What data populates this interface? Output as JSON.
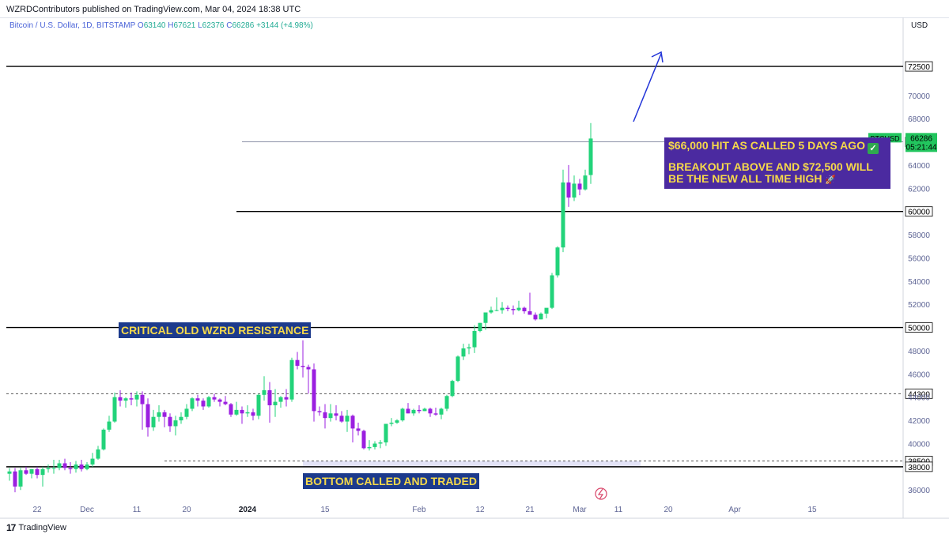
{
  "header": {
    "publish_line": "WZRDContributors published on TradingView.com, Mar 04, 2024 18:38 UTC"
  },
  "legend": {
    "symbol": "Bitcoin / U.S. Dollar, 1D, BITSTAMP",
    "open_label": "O",
    "open": "63140",
    "high_label": "H",
    "high": "67621",
    "low_label": "L",
    "low": "62376",
    "close_label": "C",
    "close": "66286",
    "change": "+3144 (+4.98%)"
  },
  "currency": "USD",
  "footer": {
    "brand": "TradingView",
    "brand_mark": "17"
  },
  "annotations": {
    "resistance": "CRITICAL OLD WZRD RESISTANCE",
    "bottom": "BOTTOM CALLED AND TRADED",
    "box_line1": "$66,000 HIT AS CALLED 5 DAYS AGO",
    "box_line2": "BREAKOUT ABOVE AND $72,500 WILL",
    "box_line3": "BE THE NEW ALL TIME HIGH"
  },
  "colors": {
    "up": "#22d37a",
    "down": "#9b1fe0",
    "price_tag": "#22c55e",
    "arrow": "#2234d8",
    "text_axis": "#5d6494"
  },
  "chart_data": {
    "type": "candlestick",
    "title": "Bitcoin / U.S. Dollar, 1D, BITSTAMP",
    "ylim": [
      35200,
      75500
    ],
    "y_ticks": [
      36000,
      40000,
      42000,
      44000,
      46000,
      48000,
      52000,
      54000,
      56000,
      58000,
      62000,
      64000,
      68000,
      70000
    ],
    "x_tick_labels": [
      {
        "label": "22",
        "i": 5
      },
      {
        "label": "Dec",
        "i": 14
      },
      {
        "label": "11",
        "i": 23
      },
      {
        "label": "20",
        "i": 32
      },
      {
        "label": "2024",
        "i": 43
      },
      {
        "label": "15",
        "i": 57
      },
      {
        "label": "Feb",
        "i": 74
      },
      {
        "label": "12",
        "i": 85
      },
      {
        "label": "21",
        "i": 94
      },
      {
        "label": "Mar",
        "i": 103
      },
      {
        "label": "11",
        "i": 110
      },
      {
        "label": "20",
        "i": 119
      },
      {
        "label": "Apr",
        "i": 131
      },
      {
        "label": "15",
        "i": 145
      }
    ],
    "horizontal_levels": [
      {
        "value": 72500,
        "label": "72500",
        "from_i": -2
      },
      {
        "value": 66000,
        "label": "66000",
        "from_i": 42
      },
      {
        "value": 60000,
        "label": "60000",
        "from_i": 41
      },
      {
        "value": 50000,
        "label": "50000",
        "from_i": -2
      },
      {
        "value": 44300,
        "label": "44300",
        "from_i": -2,
        "dashed": true
      },
      {
        "value": 38500,
        "label": "38500",
        "from_i": 28,
        "dashed": true
      },
      {
        "value": 38000,
        "label": "38000",
        "from_i": -2
      }
    ],
    "current_price": {
      "symbol": "BTCUSD",
      "value": "66286",
      "countdown": "05:21:44"
    },
    "candles": [
      [
        37400,
        37900,
        36800,
        37600
      ],
      [
        37600,
        37900,
        35800,
        36300
      ],
      [
        36300,
        37900,
        36000,
        37700
      ],
      [
        37700,
        38000,
        37300,
        37400
      ],
      [
        37400,
        37800,
        37000,
        37800
      ],
      [
        37800,
        38000,
        37000,
        37300
      ],
      [
        37300,
        38000,
        36300,
        37800
      ],
      [
        37800,
        38200,
        37500,
        37900
      ],
      [
        37900,
        38600,
        37400,
        37900
      ],
      [
        37900,
        38600,
        37700,
        38300
      ],
      [
        38300,
        38700,
        37700,
        37900
      ],
      [
        37900,
        38400,
        37400,
        37800
      ],
      [
        37800,
        38500,
        37500,
        38200
      ],
      [
        38200,
        38600,
        37600,
        37800
      ],
      [
        37800,
        38400,
        37700,
        38200
      ],
      [
        38200,
        39200,
        38000,
        38700
      ],
      [
        38700,
        39800,
        38600,
        39500
      ],
      [
        39500,
        41300,
        39400,
        41200
      ],
      [
        41200,
        42400,
        41000,
        41900
      ],
      [
        41900,
        44400,
        41800,
        44000
      ],
      [
        44000,
        44600,
        43200,
        43700
      ],
      [
        43700,
        44000,
        43100,
        43900
      ],
      [
        43900,
        44400,
        43300,
        43800
      ],
      [
        43800,
        44500,
        43200,
        44200
      ],
      [
        44200,
        44500,
        41200,
        43400
      ],
      [
        43400,
        43900,
        40600,
        41400
      ],
      [
        41400,
        42900,
        41100,
        42300
      ],
      [
        42300,
        43300,
        41900,
        42700
      ],
      [
        42700,
        42900,
        41400,
        42300
      ],
      [
        42300,
        42600,
        41000,
        41500
      ],
      [
        41500,
        42400,
        40700,
        42000
      ],
      [
        42000,
        42700,
        41700,
        42300
      ],
      [
        42300,
        43400,
        42100,
        43000
      ],
      [
        43000,
        44000,
        42800,
        43900
      ],
      [
        43900,
        44200,
        43200,
        43700
      ],
      [
        43700,
        43900,
        42900,
        43200
      ],
      [
        43200,
        44100,
        43100,
        44000
      ],
      [
        44000,
        44300,
        43600,
        43800
      ],
      [
        43800,
        43900,
        43200,
        43600
      ],
      [
        43600,
        44100,
        43300,
        43400
      ],
      [
        43400,
        43500,
        42300,
        42500
      ],
      [
        42500,
        43600,
        42400,
        42900
      ],
      [
        42900,
        43200,
        41700,
        42600
      ],
      [
        42600,
        43300,
        42300,
        42700
      ],
      [
        42700,
        43000,
        42000,
        42400
      ],
      [
        42400,
        44300,
        42100,
        44200
      ],
      [
        44200,
        45800,
        43700,
        44600
      ],
      [
        44600,
        45300,
        41800,
        43300
      ],
      [
        43300,
        44700,
        42300,
        43600
      ],
      [
        43600,
        44100,
        43100,
        44000
      ],
      [
        44000,
        44700,
        43200,
        43800
      ],
      [
        43800,
        47400,
        43600,
        47200
      ],
      [
        47200,
        47900,
        46400,
        46700
      ],
      [
        46700,
        48900,
        45700,
        46600
      ],
      [
        46600,
        46800,
        44300,
        46400
      ],
      [
        46400,
        46900,
        41900,
        42800
      ],
      [
        42800,
        43200,
        42400,
        42700
      ],
      [
        42700,
        43400,
        41300,
        42200
      ],
      [
        42200,
        43400,
        41900,
        42600
      ],
      [
        42600,
        43300,
        42000,
        42400
      ],
      [
        42400,
        42800,
        41800,
        41900
      ],
      [
        41900,
        42900,
        41000,
        42400
      ],
      [
        42400,
        42500,
        40100,
        41300
      ],
      [
        41300,
        41800,
        40700,
        41100
      ],
      [
        41100,
        41200,
        39500,
        39600
      ],
      [
        39600,
        40300,
        39400,
        39700
      ],
      [
        39700,
        40200,
        39500,
        40000
      ],
      [
        40000,
        40300,
        39600,
        40100
      ],
      [
        40100,
        41700,
        39800,
        41700
      ],
      [
        41700,
        42200,
        41500,
        41800
      ],
      [
        41800,
        42100,
        41700,
        42000
      ],
      [
        42000,
        43100,
        41900,
        43000
      ],
      [
        43000,
        43500,
        42600,
        42600
      ],
      [
        42600,
        43000,
        42400,
        42900
      ],
      [
        42900,
        43300,
        42600,
        42800
      ],
      [
        42800,
        43100,
        42800,
        43000
      ],
      [
        43000,
        43100,
        42300,
        42600
      ],
      [
        42600,
        43100,
        42400,
        42500
      ],
      [
        42500,
        43100,
        42100,
        43000
      ],
      [
        43000,
        44200,
        42800,
        44100
      ],
      [
        44100,
        45500,
        44000,
        45400
      ],
      [
        45400,
        47600,
        45300,
        47500
      ],
      [
        47500,
        48600,
        47200,
        48200
      ],
      [
        48200,
        48600,
        47700,
        48300
      ],
      [
        48300,
        50200,
        47800,
        49700
      ],
      [
        49700,
        50400,
        49600,
        50400
      ],
      [
        50400,
        51100,
        49800,
        51300
      ],
      [
        51300,
        51800,
        51200,
        51500
      ],
      [
        51500,
        52600,
        51400,
        51500
      ],
      [
        51500,
        52200,
        51200,
        51700
      ],
      [
        51700,
        51900,
        51400,
        51600
      ],
      [
        51600,
        51900,
        51100,
        51500
      ],
      [
        51500,
        52300,
        51400,
        51700
      ],
      [
        51700,
        51800,
        51200,
        51400
      ],
      [
        51400,
        53000,
        51100,
        51100
      ],
      [
        51100,
        51300,
        50600,
        50700
      ],
      [
        50700,
        51300,
        50700,
        51200
      ],
      [
        51200,
        51600,
        50800,
        51700
      ],
      [
        51700,
        54700,
        51600,
        54500
      ],
      [
        54500,
        57000,
        54300,
        56900
      ],
      [
        56900,
        63600,
        56500,
        62500
      ],
      [
        62500,
        64000,
        60400,
        61200
      ],
      [
        61200,
        63100,
        60900,
        62400
      ],
      [
        62400,
        62800,
        61400,
        61900
      ],
      [
        61900,
        63600,
        61800,
        63100
      ],
      [
        63140,
        67621,
        62376,
        66286
      ]
    ]
  }
}
